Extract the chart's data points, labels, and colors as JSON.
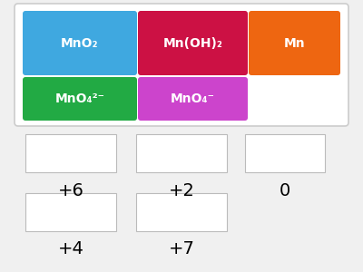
{
  "background_color": "#f0f0f0",
  "container_bg": "#ffffff",
  "container_border": "#cccccc",
  "buttons": [
    {
      "label": "MnO₂",
      "color": "#3fa8e0",
      "row": 0,
      "col": 0
    },
    {
      "label": "Mn(OH)₂",
      "color": "#cc1144",
      "row": 0,
      "col": 1
    },
    {
      "label": "Mn",
      "color": "#ee6611",
      "row": 0,
      "col": 2
    },
    {
      "label": "MnO₄²⁻",
      "color": "#22aa44",
      "row": 1,
      "col": 0
    },
    {
      "label": "MnO₄⁻",
      "color": "#cc44cc",
      "row": 1,
      "col": 1
    }
  ],
  "row1_labels": [
    "+6",
    "+2",
    "0"
  ],
  "row2_labels": [
    "+4",
    "+7"
  ]
}
